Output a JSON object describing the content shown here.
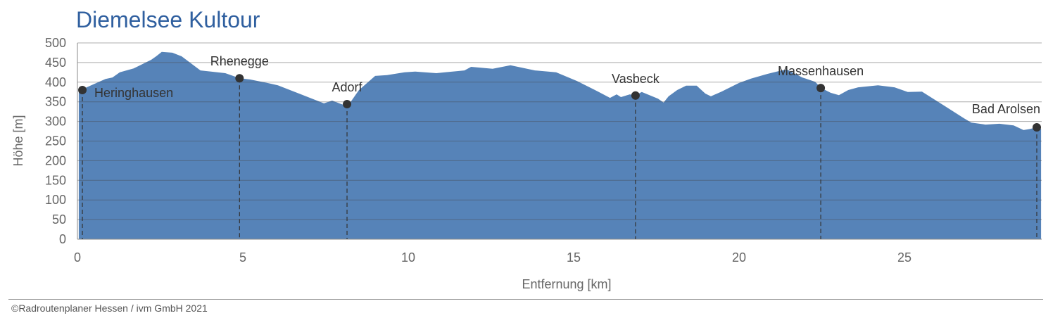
{
  "chart_data": {
    "type": "area",
    "title": "Diemelsee Kultour",
    "xlabel": "Entfernung [km]",
    "ylabel": "Höhe [m]",
    "xlim": [
      0,
      29.15
    ],
    "ylim": [
      0,
      500
    ],
    "xticks": [
      0,
      5,
      10,
      15,
      20,
      25
    ],
    "yticks": [
      0,
      50,
      100,
      150,
      200,
      250,
      300,
      350,
      400,
      450,
      500
    ],
    "grid": "horizontal",
    "fill_color": "#5683b8",
    "profile": [
      [
        0.04,
        376
      ],
      [
        0.15,
        382
      ],
      [
        0.85,
        408
      ],
      [
        1.06,
        412
      ],
      [
        1.28,
        425
      ],
      [
        1.7,
        435
      ],
      [
        2.23,
        457
      ],
      [
        2.38,
        466
      ],
      [
        2.55,
        477
      ],
      [
        2.87,
        475
      ],
      [
        3.15,
        466
      ],
      [
        3.72,
        430
      ],
      [
        4.04,
        427
      ],
      [
        4.47,
        423
      ],
      [
        4.91,
        410
      ],
      [
        5.21,
        407
      ],
      [
        5.74,
        398
      ],
      [
        6.06,
        392
      ],
      [
        6.7,
        371
      ],
      [
        7.45,
        346
      ],
      [
        7.7,
        353
      ],
      [
        7.98,
        344
      ],
      [
        8.13,
        340
      ],
      [
        8.23,
        346
      ],
      [
        8.51,
        380
      ],
      [
        9.0,
        416
      ],
      [
        9.36,
        418
      ],
      [
        9.89,
        425
      ],
      [
        10.21,
        427
      ],
      [
        10.85,
        423
      ],
      [
        11.7,
        430
      ],
      [
        11.9,
        439
      ],
      [
        12.55,
        434
      ],
      [
        13.09,
        443
      ],
      [
        13.83,
        430
      ],
      [
        14.47,
        425
      ],
      [
        15.1,
        403
      ],
      [
        15.74,
        376
      ],
      [
        16.1,
        360
      ],
      [
        16.3,
        369
      ],
      [
        16.43,
        362
      ],
      [
        16.7,
        369
      ],
      [
        16.85,
        366
      ],
      [
        17.06,
        375
      ],
      [
        17.55,
        358
      ],
      [
        17.72,
        348
      ],
      [
        17.87,
        364
      ],
      [
        18.13,
        380
      ],
      [
        18.4,
        391
      ],
      [
        18.72,
        391
      ],
      [
        18.98,
        371
      ],
      [
        19.15,
        364
      ],
      [
        19.47,
        376
      ],
      [
        20.0,
        398
      ],
      [
        20.36,
        409
      ],
      [
        20.85,
        421
      ],
      [
        21.28,
        430
      ],
      [
        21.45,
        432
      ],
      [
        21.91,
        412
      ],
      [
        22.3,
        401
      ],
      [
        22.49,
        385
      ],
      [
        22.77,
        373
      ],
      [
        23.02,
        367
      ],
      [
        23.3,
        380
      ],
      [
        23.6,
        387
      ],
      [
        24.2,
        392
      ],
      [
        24.7,
        387
      ],
      [
        25.1,
        375
      ],
      [
        25.53,
        376
      ],
      [
        26.17,
        342
      ],
      [
        26.8,
        308
      ],
      [
        27.02,
        297
      ],
      [
        27.45,
        292
      ],
      [
        27.87,
        294
      ],
      [
        28.3,
        290
      ],
      [
        28.6,
        278
      ],
      [
        28.8,
        281
      ],
      [
        29.0,
        285
      ],
      [
        29.13,
        281
      ]
    ],
    "waypoints": [
      {
        "name": "Heringhausen",
        "km": 0.15,
        "elevation": 380,
        "label_side": "right"
      },
      {
        "name": "Rhenegge",
        "km": 4.9,
        "elevation": 410,
        "label_side": "above"
      },
      {
        "name": "Adorf",
        "km": 8.15,
        "elevation": 344,
        "label_side": "above"
      },
      {
        "name": "Vasbeck",
        "km": 16.87,
        "elevation": 366,
        "label_side": "above"
      },
      {
        "name": "Massenhausen",
        "km": 22.47,
        "elevation": 385,
        "label_side": "above"
      },
      {
        "name": "Bad Arolsen",
        "km": 29.0,
        "elevation": 285,
        "label_side": "above-left"
      }
    ]
  },
  "footer": {
    "copyright": "©Radroutenplaner Hessen / ivm GmbH 2021"
  }
}
